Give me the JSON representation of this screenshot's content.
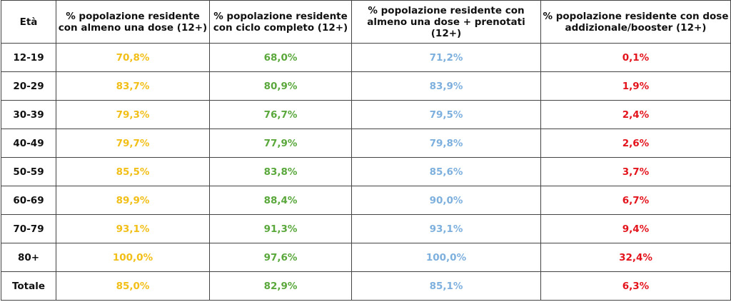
{
  "headers": [
    "Età",
    "% popolazione residente con almeno una dose (12+)",
    "% popolazione residente con ciclo completo (12+)",
    "% popolazione residente con almeno una dose + prenotati (12+)",
    "% popolazione residente con dose addizionale/booster (12+)"
  ],
  "colors": {
    "col1": "#f2bf18",
    "col2": "#5aa83c",
    "col3": "#7eb0de",
    "col4": "#e3141c"
  },
  "rows": [
    [
      "12-19",
      "70,8%",
      "68,0%",
      "71,2%",
      "0,1%"
    ],
    [
      "20-29",
      "83,7%",
      "80,9%",
      "83,9%",
      "1,9%"
    ],
    [
      "30-39",
      "79,3%",
      "76,7%",
      "79,5%",
      "2,4%"
    ],
    [
      "40-49",
      "79,7%",
      "77,9%",
      "79,8%",
      "2,6%"
    ],
    [
      "50-59",
      "85,5%",
      "83,8%",
      "85,6%",
      "3,7%"
    ],
    [
      "60-69",
      "89,9%",
      "88,4%",
      "90,0%",
      "6,7%"
    ],
    [
      "70-79",
      "93,1%",
      "91,3%",
      "93,1%",
      "9,4%"
    ],
    [
      "80+",
      "100,0%",
      "97,6%",
      "100,0%",
      "32,4%"
    ],
    [
      "Totale",
      "85,0%",
      "82,9%",
      "85,1%",
      "6,3%"
    ]
  ]
}
